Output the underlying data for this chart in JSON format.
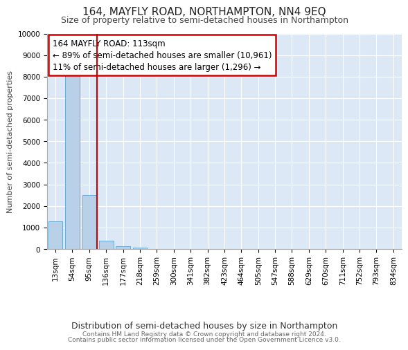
{
  "title": "164, MAYFLY ROAD, NORTHAMPTON, NN4 9EQ",
  "subtitle": "Size of property relative to semi-detached houses in Northampton",
  "xlabel": "Distribution of semi-detached houses by size in Northampton",
  "ylabel": "Number of semi-detached properties",
  "footer_line1": "Contains HM Land Registry data © Crown copyright and database right 2024.",
  "footer_line2": "Contains public sector information licensed under the Open Government Licence v3.0.",
  "annotation_title": "164 MAYFLY ROAD: 113sqm",
  "annotation_line1": "← 89% of semi-detached houses are smaller (10,961)",
  "annotation_line2": "11% of semi-detached houses are larger (1,296) →",
  "bar_color": "#b8d0e8",
  "bar_edge_color": "#6aaad4",
  "vline_color": "#cc0000",
  "annotation_box_edgecolor": "#cc0000",
  "background_color": "#dce8f5",
  "grid_color": "#ffffff",
  "categories": [
    "13sqm",
    "54sqm",
    "95sqm",
    "136sqm",
    "177sqm",
    "218sqm",
    "259sqm",
    "300sqm",
    "341sqm",
    "382sqm",
    "423sqm",
    "464sqm",
    "505sqm",
    "547sqm",
    "588sqm",
    "629sqm",
    "670sqm",
    "711sqm",
    "752sqm",
    "793sqm",
    "834sqm"
  ],
  "values": [
    1300,
    8050,
    2520,
    390,
    145,
    80,
    0,
    0,
    0,
    0,
    0,
    0,
    0,
    0,
    0,
    0,
    0,
    0,
    0,
    0,
    0
  ],
  "ylim": [
    0,
    10000
  ],
  "yticks": [
    0,
    1000,
    2000,
    3000,
    4000,
    5000,
    6000,
    7000,
    8000,
    9000,
    10000
  ],
  "vline_x": 2.45,
  "title_fontsize": 11,
  "subtitle_fontsize": 9,
  "ylabel_fontsize": 8,
  "xlabel_fontsize": 9,
  "tick_fontsize": 7.5,
  "footer_fontsize": 6.5,
  "annotation_fontsize": 8.5
}
